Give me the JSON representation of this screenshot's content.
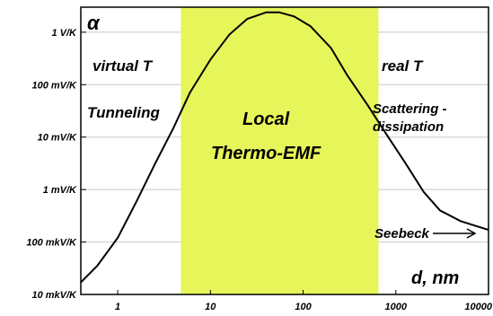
{
  "chart_data": {
    "type": "line",
    "symbol": "α",
    "xlabel": "d, nm",
    "x_scale": "log",
    "y_scale": "log",
    "xlim": [
      0.4,
      10000
    ],
    "ylim": [
      1e-05,
      3
    ],
    "x_ticks": [
      {
        "value": 1,
        "label": "1"
      },
      {
        "value": 10,
        "label": "10"
      },
      {
        "value": 100,
        "label": "100"
      },
      {
        "value": 1000,
        "label": "1000"
      },
      {
        "value": 10000,
        "label": "10000"
      }
    ],
    "y_ticks": [
      {
        "value": 1e-05,
        "label": "10 mkV/K"
      },
      {
        "value": 0.0001,
        "label": "100 mkV/K"
      },
      {
        "value": 0.001,
        "label": "1 mV/K"
      },
      {
        "value": 0.01,
        "label": "10 mV/K"
      },
      {
        "value": 0.1,
        "label": "100 mV/K"
      },
      {
        "value": 1,
        "label": "1 V/K"
      }
    ],
    "grid": {
      "horizontal": true,
      "vertical": false
    },
    "highlight_region": {
      "x_from": 4.8,
      "x_to": 650,
      "color": "#e6f55a"
    },
    "series": [
      {
        "color": "#000000",
        "x": [
          0.4,
          0.6,
          1,
          1.6,
          2.5,
          4,
          6,
          10,
          16,
          25,
          40,
          55,
          80,
          120,
          200,
          300,
          500,
          800,
          1300,
          2000,
          3000,
          5000,
          10000
        ],
        "y": [
          1.7e-05,
          3.5e-05,
          0.00012,
          0.0006,
          0.003,
          0.015,
          0.07,
          0.3,
          0.9,
          1.8,
          2.4,
          2.4,
          2.0,
          1.3,
          0.5,
          0.15,
          0.04,
          0.011,
          0.003,
          0.0009,
          0.0004,
          0.00025,
          0.00017
        ]
      }
    ],
    "annotations": [
      {
        "text": "virtual T"
      },
      {
        "text": "real T"
      },
      {
        "text": "Tunneling"
      },
      {
        "text": "Scattering -"
      },
      {
        "text": "dissipation"
      },
      {
        "text": "Local"
      },
      {
        "text": "Thermo-EMF"
      },
      {
        "text": "Seebeck"
      }
    ]
  }
}
